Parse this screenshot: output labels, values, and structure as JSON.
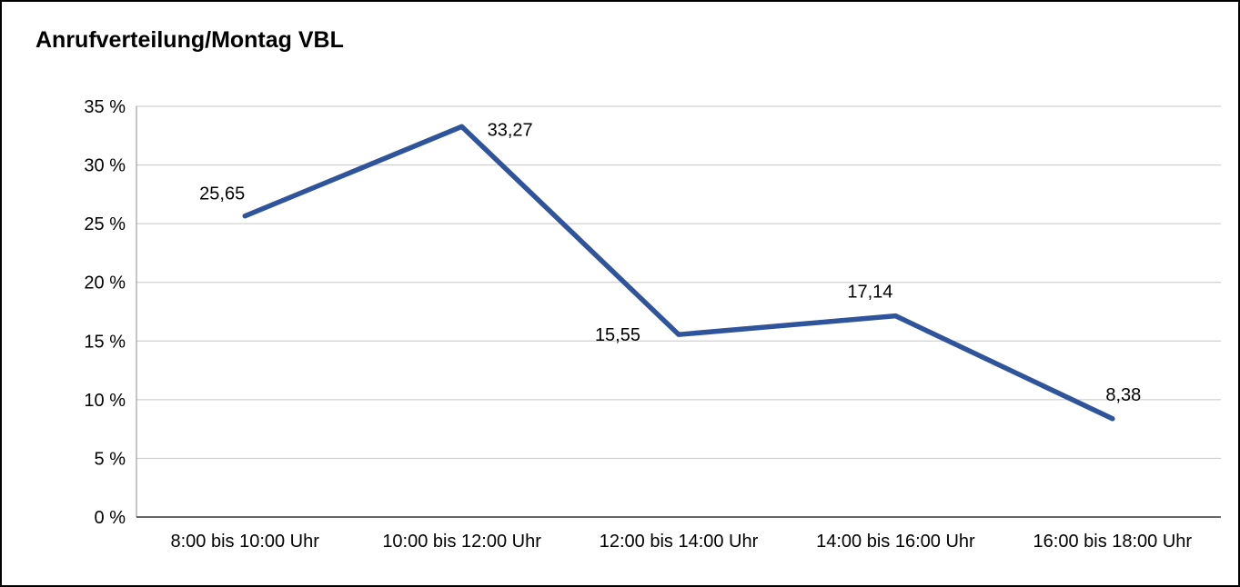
{
  "page": {
    "title": "Anrufverteilung/Montag VBL"
  },
  "chart_data": {
    "type": "line",
    "title": "Anrufverteilung/Montag VBL",
    "categories": [
      "8:00 bis 10:00 Uhr",
      "10:00 bis 12:00 Uhr",
      "12:00 bis 14:00 Uhr",
      "14:00 bis 16:00 Uhr",
      "16:00 bis 18:00 Uhr"
    ],
    "values": [
      25.65,
      33.27,
      15.55,
      17.14,
      8.38
    ],
    "value_labels": [
      "25,65",
      "33,27",
      "15,55",
      "17,14",
      "8,38"
    ],
    "xlabel": "",
    "ylabel": "",
    "ylim": [
      0,
      35
    ],
    "ytick_step": 5,
    "ytick_suffix": " %",
    "grid": true,
    "legend": "none",
    "colors": {
      "line": "#2f549b",
      "grid": "#c6c6c6",
      "y_axis": "#8c8c8c",
      "x_axis": "#333333",
      "text": "#000000"
    }
  }
}
